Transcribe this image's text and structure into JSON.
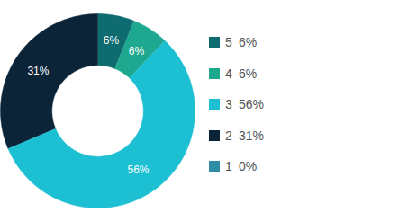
{
  "chart_data": {
    "type": "donut",
    "categories": [
      "5",
      "4",
      "3",
      "2",
      "1"
    ],
    "values": [
      6,
      6,
      56,
      31,
      0
    ],
    "value_labels": [
      "6%",
      "6%",
      "56%",
      "31%",
      "0%"
    ],
    "colors": [
      "#0e6b70",
      "#1ea88f",
      "#1dbfd3",
      "#0c2438",
      "#2d8ea6"
    ],
    "data_labels": true,
    "legend": "right"
  }
}
